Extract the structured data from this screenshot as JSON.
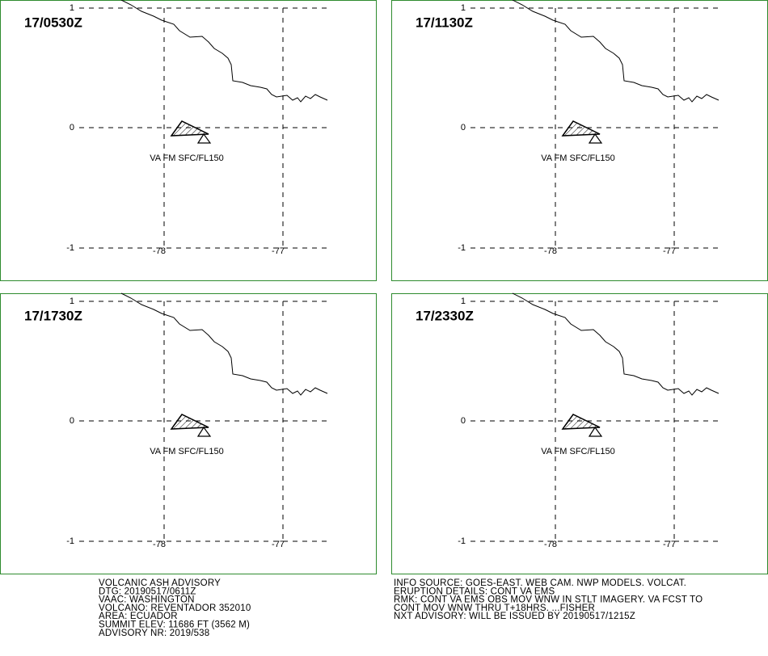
{
  "panels": [
    {
      "time": "17/0530Z",
      "lat_labels": [
        "1",
        "0",
        "-1"
      ],
      "lon_labels": [
        "-78",
        "-77"
      ],
      "ash_label": "VA FM SFC/FL150"
    },
    {
      "time": "17/1130Z",
      "lat_labels": [
        "1",
        "0",
        "-1"
      ],
      "lon_labels": [
        "-78",
        "-77"
      ],
      "ash_label": "VA FM SFC/FL150"
    },
    {
      "time": "17/1730Z",
      "lat_labels": [
        "1",
        "0",
        "-1"
      ],
      "lon_labels": [
        "-78",
        "-77"
      ],
      "ash_label": "VA FM SFC/FL150"
    },
    {
      "time": "17/2330Z",
      "lat_labels": [
        "1",
        "0",
        "-1"
      ],
      "lon_labels": [
        "-78",
        "-77"
      ],
      "ash_label": "VA FM SFC/FL150"
    }
  ],
  "advisory_left": [
    "VOLCANIC ASH ADVISORY",
    "DTG: 20190517/0611Z",
    "VAAC: WASHINGTON",
    "VOLCANO: REVENTADOR 352010",
    "AREA: ECUADOR",
    "SUMMIT ELEV: 11686 FT (3562 M)",
    "ADVISORY NR: 2019/538"
  ],
  "advisory_right": [
    "INFO SOURCE: GOES-EAST. WEB CAM. NWP MODELS. VOLCAT.",
    "ERUPTION DETAILS: CONT VA EMS",
    "RMK: CONT VA EMS OBS MOV WNW IN STLT IMAGERY. VA FCST TO",
    "CONT MOV WNW THRU T+18HRS. ...FISHER",
    "NXT ADVISORY: WILL BE ISSUED BY 20190517/1215Z"
  ]
}
